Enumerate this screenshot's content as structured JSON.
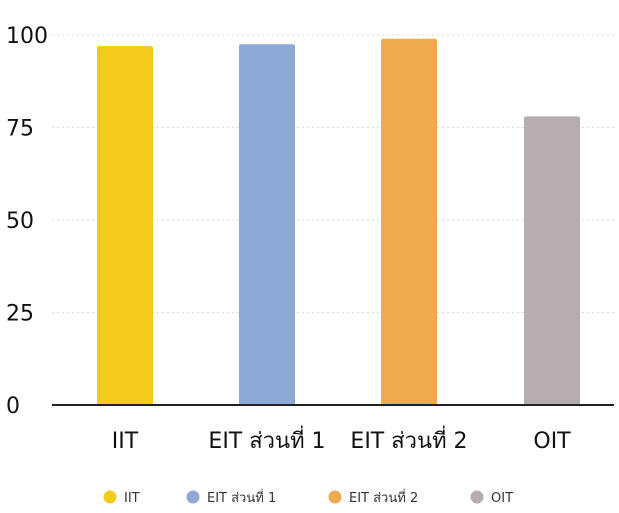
{
  "chart_data": {
    "type": "bar",
    "title": "",
    "xlabel": "",
    "ylabel": "",
    "categories": [
      "IIT",
      "EIT ส่วนที่ 1",
      "EIT ส่วนที่ 2",
      "OIT"
    ],
    "values": [
      97,
      97.5,
      99,
      78
    ],
    "colors": [
      "#F4CB1A",
      "#8FA9D6",
      "#EFAA4E",
      "#B7ADB0"
    ],
    "ylim": [
      0,
      100
    ],
    "yticks": [
      0,
      25,
      50,
      75,
      100
    ],
    "grid": true,
    "legend": {
      "position": "bottom",
      "entries": [
        "IIT",
        "EIT ส่วนที่ 1",
        "EIT ส่วนที่ 2",
        "OIT"
      ]
    }
  }
}
